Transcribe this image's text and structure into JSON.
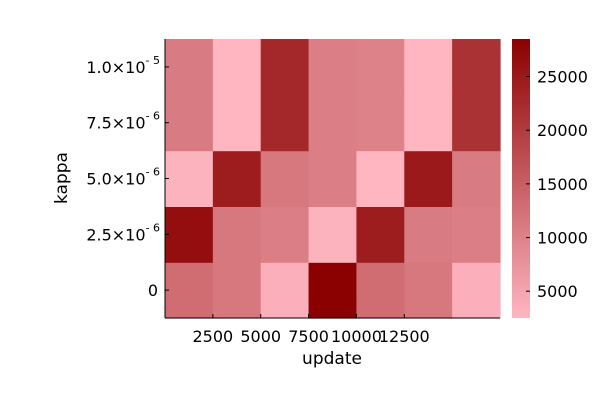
{
  "chart_data": {
    "type": "heatmap",
    "title": "",
    "xlabel": "update",
    "ylabel": "kappa",
    "x_tick_labels": [
      "2500",
      "5000",
      "7500",
      "10000",
      "12500"
    ],
    "y_tick_labels": [
      {
        "mant": "0",
        "exp": ""
      },
      {
        "mant": "2.5×10",
        "exp": "- 6"
      },
      {
        "mant": "5.0×10",
        "exp": "- 6"
      },
      {
        "mant": "7.5×10",
        "exp": "- 6"
      },
      {
        "mant": "1.0×10",
        "exp": "- 5"
      }
    ],
    "x_centers": [
      1250,
      3750,
      6250,
      8750,
      11250,
      13750,
      16250
    ],
    "y_centers": [
      0,
      2.5e-06,
      5e-06,
      7.5e-06,
      1e-05
    ],
    "values": [
      [
        13000,
        11500,
        3500,
        28500,
        13000,
        11500,
        3500
      ],
      [
        26500,
        11500,
        10500,
        3000,
        24500,
        11000,
        10500
      ],
      [
        3000,
        24500,
        11500,
        10500,
        2500,
        25000,
        11000
      ],
      [
        11000,
        2500,
        23000,
        10500,
        10000,
        2500,
        21500
      ],
      [
        11000,
        2500,
        23000,
        10500,
        10000,
        2500,
        21500
      ]
    ],
    "colorbar": {
      "range": [
        2500,
        28500
      ],
      "ticks": [
        5000,
        10000,
        15000,
        20000,
        25000
      ],
      "tick_labels": [
        "5000",
        "10000",
        "15000",
        "20000",
        "25000"
      ],
      "low_color": "#ffb6c1",
      "high_color": "#8b0000"
    },
    "grid": false
  }
}
